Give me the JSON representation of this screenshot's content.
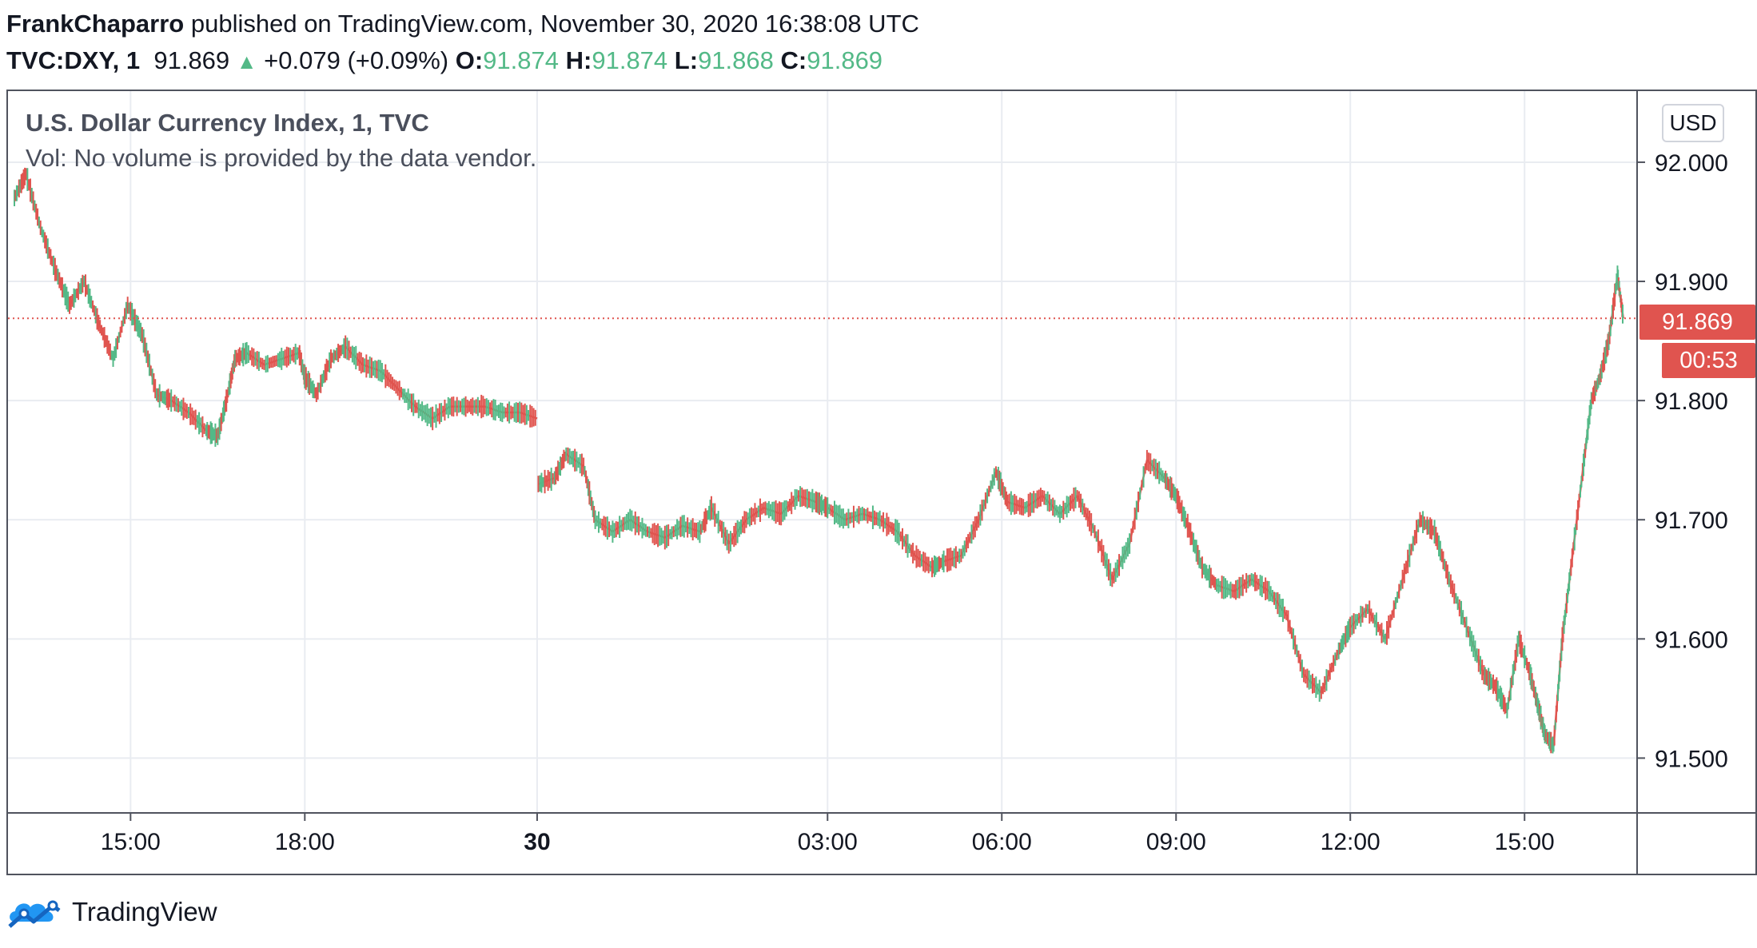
{
  "header": {
    "author": "FrankChaparro",
    "published": "published on TradingView.com, November 30, 2020 16:38:08 UTC"
  },
  "quote": {
    "symbol": "TVC:DXY, 1",
    "last": "91.869",
    "change": "+0.079 (+0.09%)",
    "open_label": "O:",
    "open": "91.874",
    "high_label": "H:",
    "high": "91.874",
    "low_label": "L:",
    "low": "91.868",
    "close_label": "C:",
    "close": "91.869"
  },
  "legend": {
    "title": "U.S. Dollar Currency Index, 1, TVC",
    "volume_note": "Vol: No volume is provided by the data vendor."
  },
  "currency_button": "USD",
  "last_price_tag": "91.869",
  "countdown_tag": "00:53",
  "brand": {
    "name": "TradingView",
    "icon": "tradingview-cloud-logo"
  },
  "colors": {
    "up": "#53b987",
    "down": "#e0544f",
    "grid": "#e9ecf1",
    "axis": "#50535e"
  },
  "chart_data": {
    "type": "candlestick-line",
    "title": "U.S. Dollar Currency Index, 1, TVC",
    "xlabel": "",
    "ylabel": "",
    "currency": "USD",
    "y_ticks": [
      "92.000",
      "91.900",
      "91.800",
      "91.700",
      "91.600",
      "91.500"
    ],
    "ylim": [
      91.454,
      92.061
    ],
    "x_ticks": [
      {
        "label": "15:00",
        "t": 15.0,
        "bold": false
      },
      {
        "label": "18:00",
        "t": 18.0,
        "bold": false
      },
      {
        "label": "30",
        "t": 22.0,
        "bold": true
      },
      {
        "label": "03:00",
        "t": 27.0,
        "bold": false
      },
      {
        "label": "06:00",
        "t": 30.0,
        "bold": false
      },
      {
        "label": "09:00",
        "t": 33.0,
        "bold": false
      },
      {
        "label": "12:00",
        "t": 36.0,
        "bold": false
      },
      {
        "label": "15:00",
        "t": 39.0,
        "bold": false
      }
    ],
    "xlim": [
      13.0,
      40.8
    ],
    "last_price": 91.869,
    "series": [
      {
        "t": [
          13.0,
          13.2,
          13.45,
          13.7,
          13.95,
          14.2,
          14.45,
          14.7,
          14.95,
          15.2,
          15.45,
          15.7,
          16.0,
          16.3,
          16.5,
          16.65,
          16.8,
          17.0,
          17.3,
          17.6,
          17.9,
          18.0,
          18.2,
          18.45,
          18.7,
          19.0,
          19.3,
          19.6,
          19.9,
          20.2,
          20.5,
          20.8,
          21.1,
          21.4,
          21.7,
          22.0,
          22.02,
          22.3,
          22.5,
          22.8,
          23.0,
          23.3,
          23.6,
          23.9,
          24.2,
          24.5,
          24.8,
          25.0,
          25.3,
          25.6,
          25.9,
          26.2,
          26.5,
          26.8,
          27.0,
          27.3,
          27.6,
          27.9,
          28.2,
          28.5,
          28.8,
          29.0,
          29.3,
          29.6,
          29.9,
          30.1,
          30.4,
          30.7,
          31.0,
          31.3,
          31.6,
          31.9,
          32.2,
          32.5,
          32.8,
          33.0,
          33.2,
          33.45,
          33.7,
          34.0,
          34.3,
          34.6,
          34.9,
          35.2,
          35.5,
          35.8,
          36.0,
          36.3,
          36.6,
          36.9,
          37.2,
          37.45,
          37.7,
          38.0,
          38.3,
          38.5,
          38.7,
          38.9,
          39.1,
          39.25,
          39.35,
          39.5,
          39.65,
          39.8,
          40.0,
          40.15,
          40.3,
          40.45,
          40.6,
          40.7
        ],
        "y": [
          91.97,
          91.99,
          91.945,
          91.91,
          91.88,
          91.9,
          91.865,
          91.835,
          91.88,
          91.855,
          91.805,
          91.8,
          91.79,
          91.775,
          91.77,
          91.8,
          91.835,
          91.84,
          91.83,
          91.835,
          91.84,
          91.82,
          91.805,
          91.835,
          91.845,
          91.83,
          91.825,
          91.81,
          91.795,
          91.785,
          91.795,
          91.795,
          91.795,
          91.79,
          91.79,
          91.785,
          91.73,
          91.735,
          91.755,
          91.745,
          91.7,
          91.69,
          91.7,
          91.69,
          91.685,
          91.695,
          91.69,
          91.71,
          91.68,
          91.7,
          91.71,
          91.705,
          91.72,
          91.715,
          91.71,
          91.7,
          91.705,
          91.7,
          91.69,
          91.67,
          91.66,
          91.665,
          91.67,
          91.7,
          91.74,
          91.715,
          91.71,
          91.72,
          91.705,
          91.72,
          91.69,
          91.65,
          91.68,
          91.75,
          91.735,
          91.72,
          91.695,
          91.66,
          91.645,
          91.64,
          91.65,
          91.64,
          91.62,
          91.57,
          91.555,
          91.59,
          91.61,
          91.625,
          91.6,
          91.65,
          91.7,
          91.69,
          91.65,
          91.61,
          91.57,
          91.56,
          91.54,
          91.6,
          91.57,
          91.54,
          91.52,
          91.51,
          91.6,
          91.66,
          91.74,
          91.8,
          91.82,
          91.85,
          91.905,
          91.869
        ]
      }
    ]
  }
}
